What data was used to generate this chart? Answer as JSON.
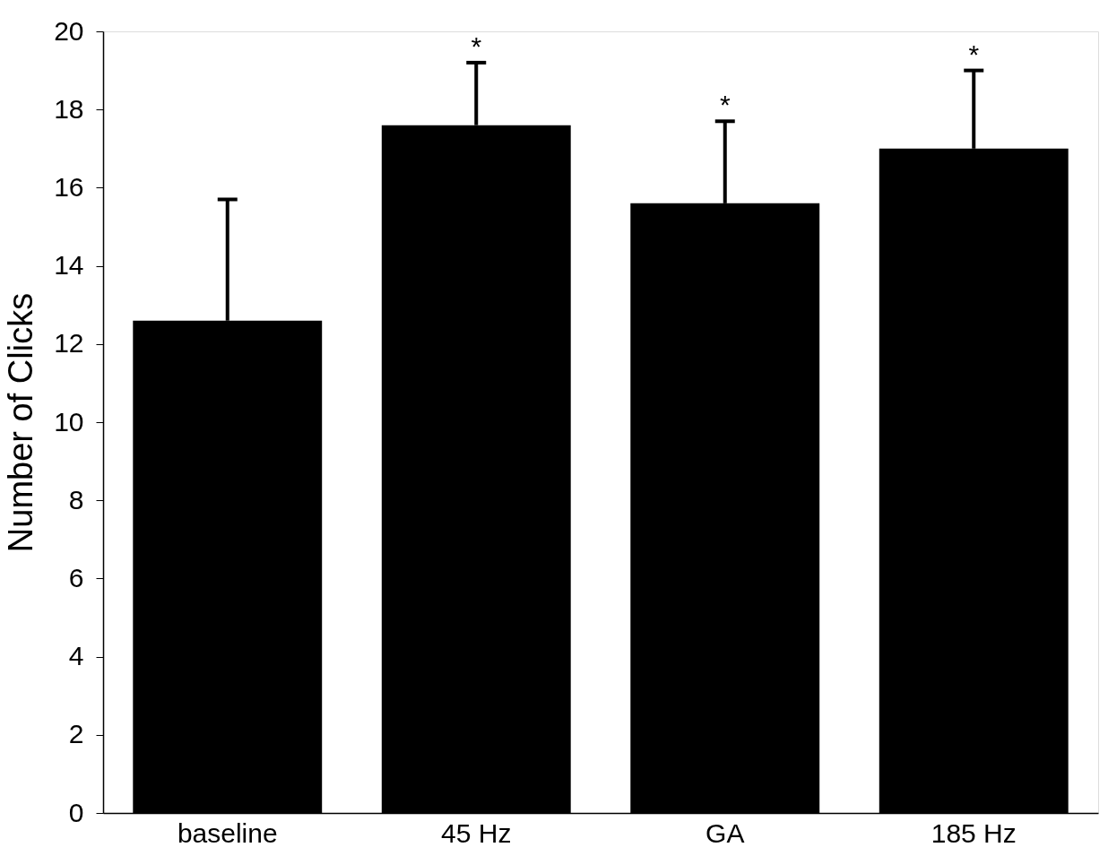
{
  "chart_data": {
    "type": "bar",
    "ylabel": "Number of Clicks",
    "categories": [
      "baseline",
      "45 Hz",
      "GA",
      "185 Hz"
    ],
    "values": [
      12.6,
      17.6,
      15.6,
      17.0
    ],
    "errors": [
      [
        12.6,
        15.7
      ],
      [
        17.6,
        19.2
      ],
      [
        15.6,
        17.7
      ],
      [
        17.0,
        19.0
      ]
    ],
    "color": "#000000",
    "ylim": [
      0,
      20
    ],
    "yticks": [
      0,
      2,
      4,
      6,
      8,
      10,
      12,
      14,
      16,
      18,
      20
    ],
    "grid": false,
    "value_labels": [
      null,
      "*",
      "*",
      "*"
    ]
  }
}
